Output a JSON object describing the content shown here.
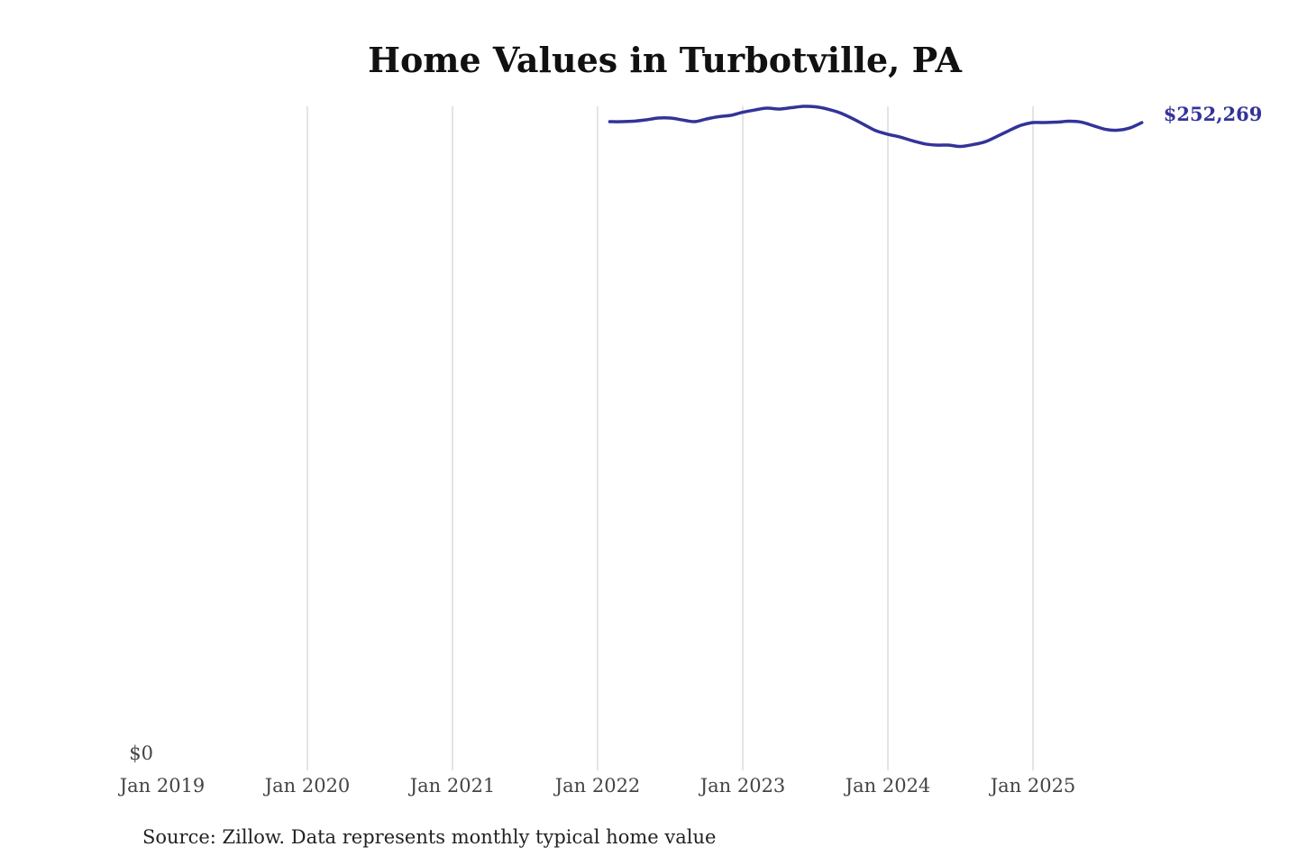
{
  "chart_data": {
    "type": "line",
    "title": "Home Values in Turbotville, PA",
    "source": "Source: Zillow. Data represents monthly typical home value",
    "xlabel": "",
    "ylabel": "",
    "x_ticks": [
      "Jan 2019",
      "Jan 2020",
      "Jan 2021",
      "Jan 2022",
      "Jan 2023",
      "Jan 2024",
      "Jan 2025"
    ],
    "y_ticks": [
      "$0"
    ],
    "xlim": [
      "2019-01",
      "2025-10"
    ],
    "ylim": [
      0,
      258600
    ],
    "grid": "vertical",
    "line_color": "#333399",
    "end_label": "$252,269",
    "series": [
      {
        "x": [
          "2022-02",
          "2022-03",
          "2022-04",
          "2022-05",
          "2022-06",
          "2022-07",
          "2022-08",
          "2022-09",
          "2022-10",
          "2022-11",
          "2022-12",
          "2023-01",
          "2023-02",
          "2023-03",
          "2023-04",
          "2023-05",
          "2023-06",
          "2023-07",
          "2023-08",
          "2023-09",
          "2023-10",
          "2023-11",
          "2023-12",
          "2024-01",
          "2024-02",
          "2024-03",
          "2024-04",
          "2024-05",
          "2024-06",
          "2024-07",
          "2024-08",
          "2024-09",
          "2024-10",
          "2024-11",
          "2024-12",
          "2025-01",
          "2025-02",
          "2025-03",
          "2025-04",
          "2025-05",
          "2025-06",
          "2025-07",
          "2025-08",
          "2025-09",
          "2025-10"
        ],
        "values": [
          252620,
          252620,
          252800,
          253320,
          254020,
          254020,
          253320,
          252620,
          253670,
          254550,
          255080,
          256300,
          257180,
          257880,
          257530,
          258060,
          258585,
          258410,
          257530,
          256130,
          254020,
          251570,
          249110,
          247710,
          246660,
          245250,
          244020,
          243500,
          243500,
          242970,
          243670,
          244720,
          246830,
          249110,
          251210,
          252270,
          252270,
          252440,
          252800,
          252440,
          251040,
          249640,
          249290,
          250170,
          252269
        ]
      }
    ]
  }
}
